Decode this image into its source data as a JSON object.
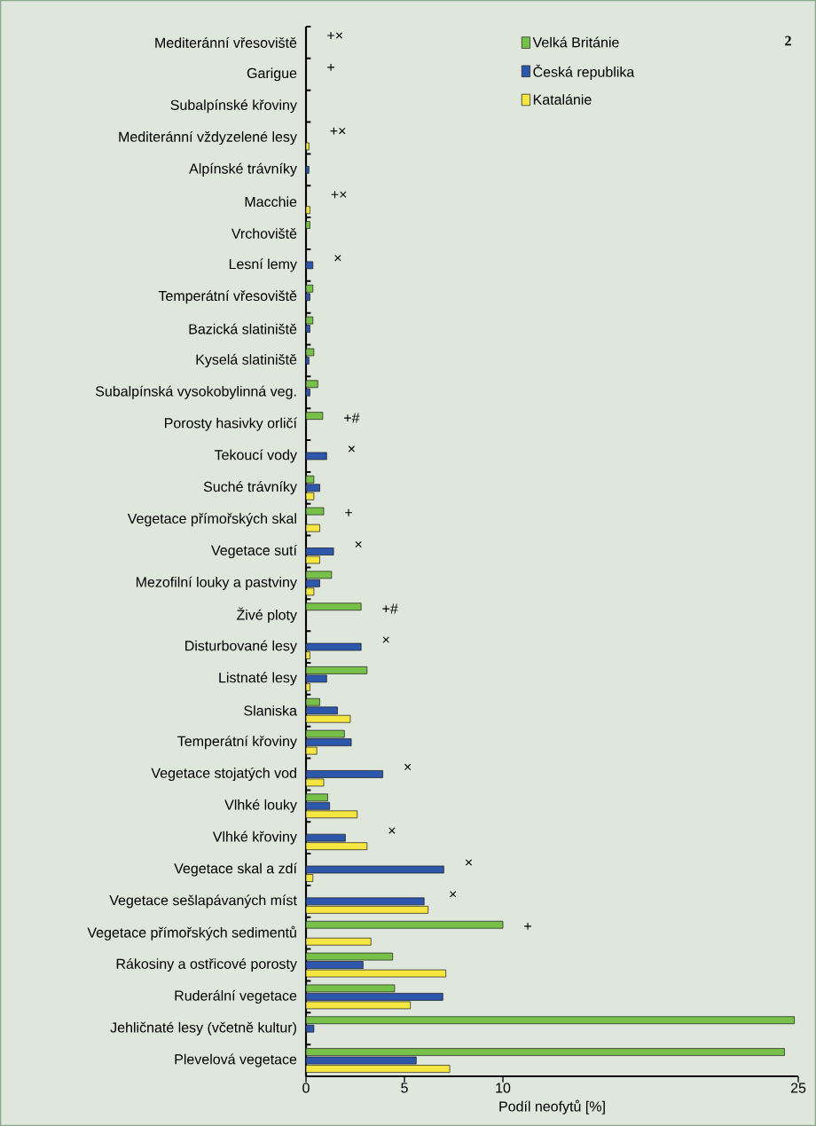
{
  "chart_data": {
    "type": "bar",
    "orientation": "horizontal",
    "xlabel": "Podíl neofytů [%]",
    "categories": [
      "Mediteránní vřesoviště",
      "Garigue",
      "Subalpínské křoviny",
      "Mediteránní vždyzelené lesy",
      "Alpínské trávníky",
      "Macchie",
      "Vrchoviště",
      "Lesní lemy",
      "Temperátní vřesoviště",
      "Bazická slatiniště",
      "Kyselá slatiniště",
      "Subalpínská vysokobylinná veg.",
      "Porosty hasivky orličí",
      "Tekoucí vody",
      "Suché trávníky",
      "Vegetace přímořských skal",
      "Vegetace sutí",
      "Mezofilní louky a pastviny",
      "Živé ploty",
      "Disturbované lesy",
      "Listnaté lesy",
      "Slaniska",
      "Temperátní křoviny",
      "Vegetace stojatých vod",
      "Vlhké louky",
      "Vlhké křoviny",
      "Vegetace skal a zdí",
      "Vegetace sešlapávaných míst",
      "Vegetace přímořských sedimentů",
      "Rákosiny a ostřicové porosty",
      "Ruderální vegetace",
      "Jehličnaté lesy (včetně kultur)",
      "Plevelová vegetace"
    ],
    "series": [
      {
        "name": "Velká Británie",
        "color": "#77c04a",
        "values": [
          null,
          null,
          null,
          null,
          null,
          null,
          0.2,
          null,
          0.35,
          0.35,
          0.4,
          0.6,
          0.85,
          null,
          0.4,
          0.9,
          null,
          1.3,
          2.8,
          null,
          3.1,
          0.7,
          1.95,
          null,
          1.1,
          null,
          null,
          null,
          10.0,
          4.4,
          4.5,
          24.8,
          24.3
        ]
      },
      {
        "name": "Česká republika",
        "color": "#2d57ab",
        "values": [
          null,
          null,
          null,
          null,
          0.15,
          null,
          null,
          0.35,
          0.2,
          0.2,
          0.15,
          0.2,
          null,
          1.05,
          0.7,
          null,
          1.4,
          0.7,
          null,
          2.8,
          1.05,
          1.6,
          2.3,
          3.9,
          1.2,
          2.0,
          7.0,
          6.0,
          null,
          2.9,
          6.95,
          0.4,
          5.6
        ]
      },
      {
        "name": "Katalánie",
        "color": "#f5e642",
        "values": [
          null,
          null,
          null,
          0.15,
          null,
          0.2,
          null,
          null,
          null,
          null,
          null,
          null,
          null,
          null,
          0.4,
          0.7,
          0.7,
          0.4,
          null,
          0.2,
          0.2,
          2.25,
          0.55,
          0.9,
          2.6,
          3.1,
          0.35,
          6.2,
          3.3,
          7.1,
          5.3,
          null,
          7.3
        ]
      }
    ],
    "xlim": [
      0,
      25
    ],
    "xticks": [
      0,
      5,
      10,
      25
    ],
    "legend": "top right",
    "annotations": [
      "2",
      "+×",
      "+",
      "+×",
      "+×",
      "×",
      "+#",
      "×",
      "+",
      "×",
      "+#",
      "×",
      "×",
      "×",
      "×",
      "×",
      "+"
    ]
  }
}
